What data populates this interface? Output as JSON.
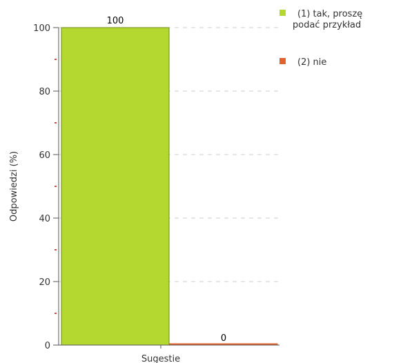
{
  "chart_data": {
    "type": "bar",
    "categories": [
      "Sugestie"
    ],
    "series": [
      {
        "name": "(1) tak, proszę podać przykład",
        "legend_lines": [
          "(1) tak, proszę",
          "podać przykład"
        ],
        "values": [
          100
        ],
        "color": "#b5d831"
      },
      {
        "name": "(2) nie",
        "legend_lines": [
          "(2) nie"
        ],
        "values": [
          0
        ],
        "color": "#e0632c"
      }
    ],
    "ylabel": "Odpowiedzi (%)",
    "ylim": [
      0,
      100
    ],
    "yticks": [
      0,
      20,
      40,
      60,
      80,
      100
    ],
    "grid": true,
    "legend": "top-right",
    "minor_tick_color": "#e00000",
    "grid_color": "#cccccc"
  }
}
